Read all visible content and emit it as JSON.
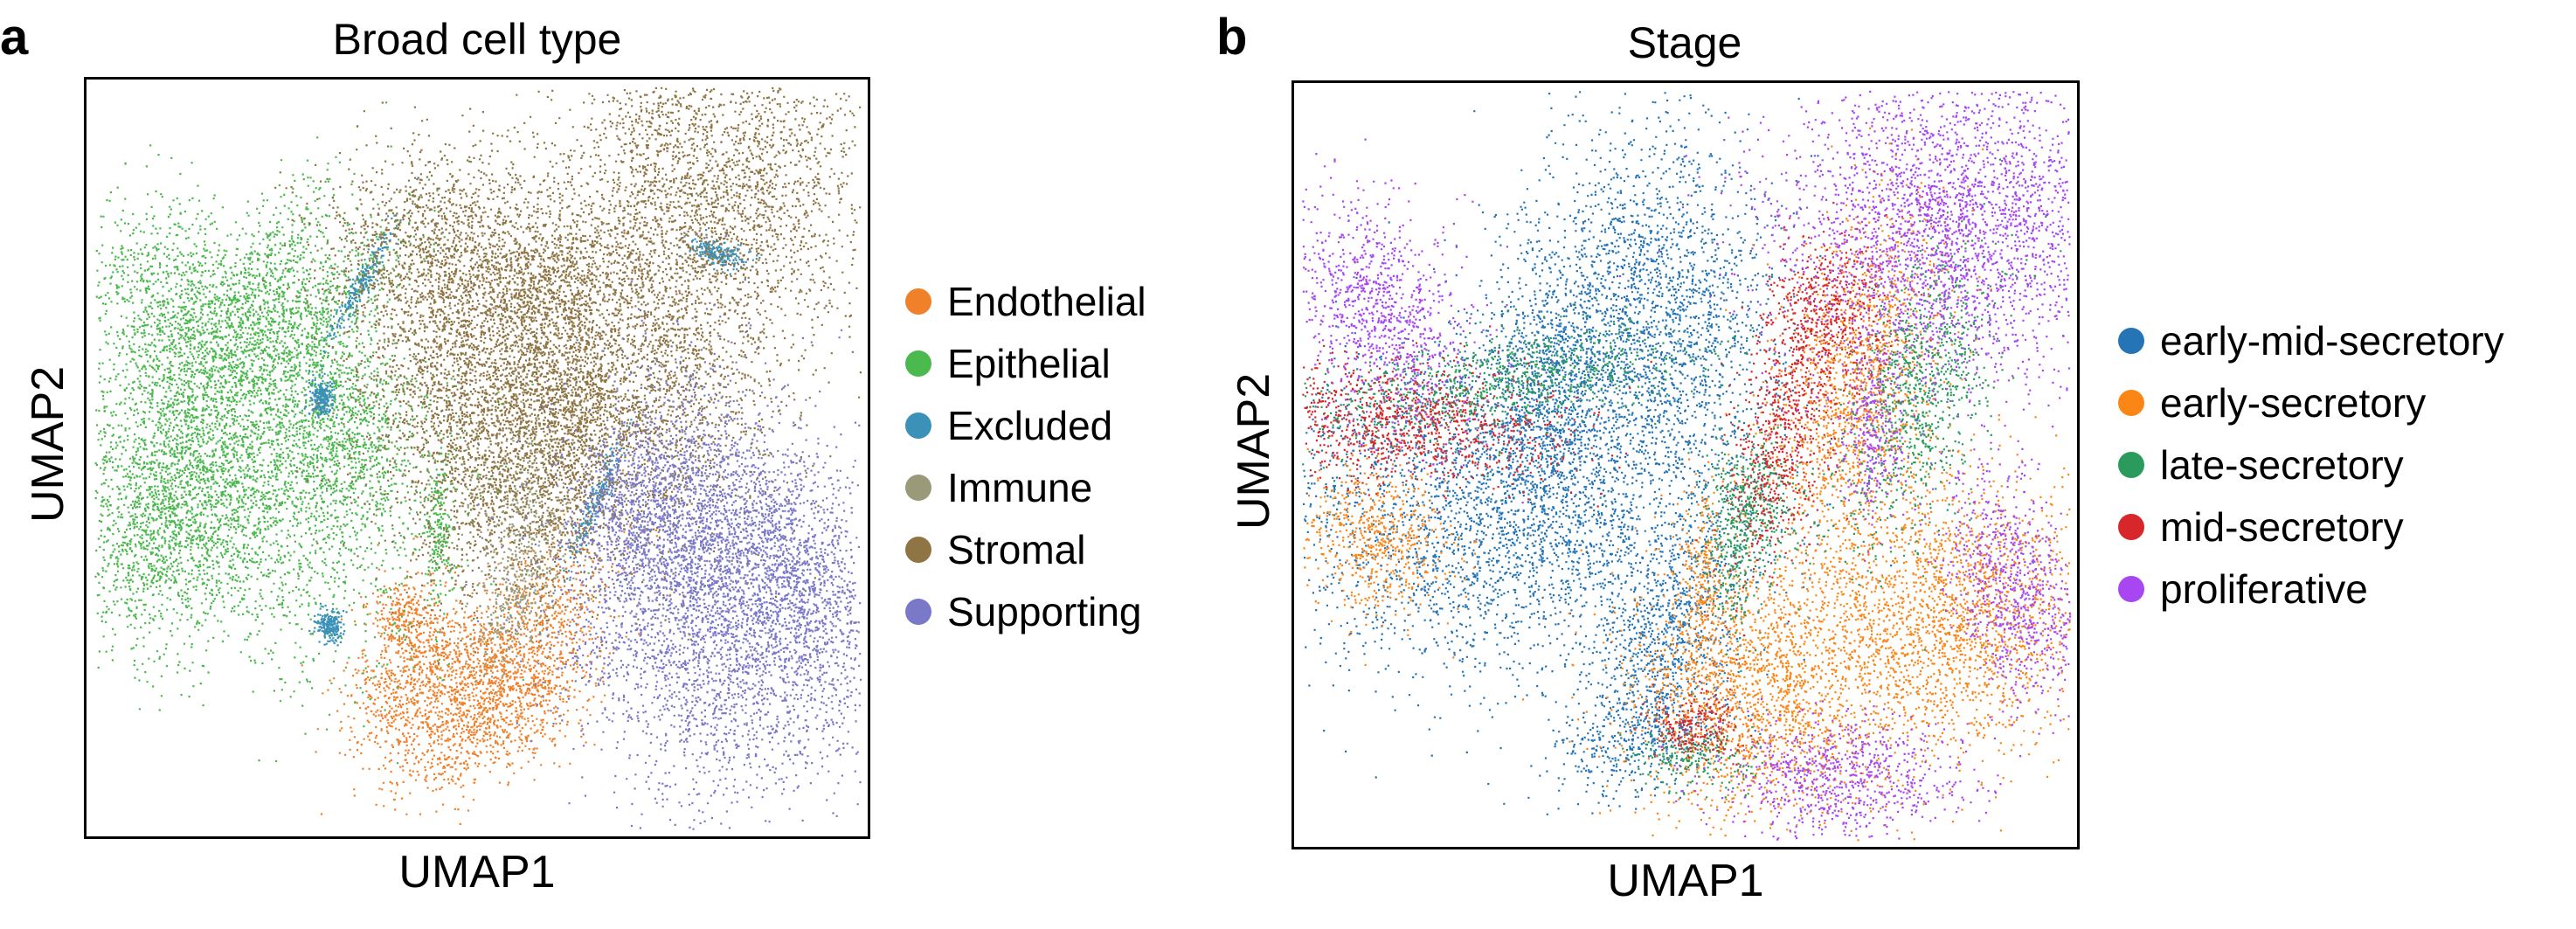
{
  "chart_data": [
    {
      "type": "scatter",
      "panel_label": "a",
      "title": "Broad cell type",
      "xlabel": "UMAP1",
      "ylabel": "UMAP2",
      "grid": false,
      "ticks": false,
      "legend_position": "right",
      "series": [
        {
          "name": "Endothelial",
          "color": "#f0802a",
          "clusters": [
            [
              47,
              76,
              6,
              4,
              0.5
            ],
            [
              52,
              84,
              8,
              4,
              -0.6
            ],
            [
              40,
              82,
              4,
              4,
              0
            ],
            [
              56,
              74,
              4,
              8,
              0.6
            ],
            [
              41,
              71,
              2,
              3,
              0
            ]
          ]
        },
        {
          "name": "Epithelial",
          "color": "#4bb94e",
          "clusters": [
            [
              20,
              53,
              13,
              11,
              0.1
            ],
            [
              10,
              58,
              5,
              8,
              0.3
            ],
            [
              12,
              31,
              6,
              8,
              -0.4
            ],
            [
              22,
              29,
              3,
              10,
              0.5
            ],
            [
              30,
              32,
              3,
              9,
              0.7
            ],
            [
              33,
              46,
              4,
              6,
              0
            ],
            [
              45,
              59,
              1,
              5,
              0
            ]
          ]
        },
        {
          "name": "Excluded",
          "color": "#3c91b8",
          "clusters": [
            [
              35,
              27,
              0.6,
              4,
              0.5
            ],
            [
              81,
              23,
              2,
              0.8,
              0.3
            ],
            [
              30,
              42,
              0.8,
              1.2,
              0
            ],
            [
              65,
              56,
              0.6,
              5,
              0.4
            ],
            [
              31,
              72,
              0.8,
              1,
              0
            ]
          ]
        },
        {
          "name": "Immune",
          "color": "#9a9a7a",
          "clusters": [
            [
              56,
              59,
              3,
              6,
              0
            ],
            [
              54,
              70,
              2,
              4,
              0.3
            ]
          ]
        },
        {
          "name": "Stromal",
          "color": "#8f7544",
          "clusters": [
            [
              80,
              14,
              10,
              10,
              -0.3
            ],
            [
              68,
              40,
              10,
              12,
              0.2
            ],
            [
              45,
              22,
              8,
              7,
              0
            ],
            [
              53,
              48,
              4,
              11,
              0.3
            ],
            [
              62,
              49,
              3,
              10,
              0.1
            ],
            [
              47,
              38,
              6,
              10,
              0.3
            ],
            [
              60,
              27,
              5,
              4,
              0
            ]
          ]
        },
        {
          "name": "Supporting",
          "color": "#7a78c8",
          "clusters": [
            [
              82,
              72,
              10,
              12,
              -0.2
            ],
            [
              90,
              65,
              5,
              9,
              -0.4
            ],
            [
              75,
              57,
              6,
              10,
              0.2
            ],
            [
              69,
              56,
              3,
              4,
              0
            ]
          ]
        }
      ]
    },
    {
      "type": "scatter",
      "panel_label": "b",
      "title": "Stage",
      "xlabel": "UMAP1",
      "ylabel": "UMAP2",
      "grid": false,
      "ticks": false,
      "legend_position": "right",
      "series": [
        {
          "name": "early-mid-secretory",
          "color": "#2575b6",
          "clusters": [
            [
              26,
              56,
              15,
              11,
              0
            ],
            [
              45,
              30,
              8,
              12,
              0
            ],
            [
              32,
              40,
              4,
              8,
              0
            ],
            [
              47,
              72,
              4,
              8,
              0.5
            ],
            [
              45,
              85,
              6,
              3,
              -0.4
            ]
          ]
        },
        {
          "name": "early-secretory",
          "color": "#fb8616",
          "clusters": [
            [
              10,
              60,
              5,
              5,
              -0.4
            ],
            [
              83,
              70,
              10,
              9,
              -0.3
            ],
            [
              58,
              80,
              8,
              9,
              -0.6
            ],
            [
              72,
              40,
              5,
              12,
              0.2
            ],
            [
              52,
              64,
              1.5,
              6,
              0
            ]
          ]
        },
        {
          "name": "late-secretory",
          "color": "#2a9b5c",
          "clusters": [
            [
              80,
              40,
              4,
              10,
              0.3
            ],
            [
              26,
              39,
              12,
              3,
              -0.2
            ],
            [
              59,
              55,
              3,
              5,
              0
            ],
            [
              51,
              88,
              4,
              2,
              0
            ],
            [
              56,
              60,
              1.5,
              6,
              0
            ]
          ]
        },
        {
          "name": "mid-secretory",
          "color": "#d7272a",
          "clusters": [
            [
              14,
              44,
              11,
              4,
              0.1
            ],
            [
              62,
              46,
              3,
              9,
              0.2
            ],
            [
              68,
              30,
              4,
              5,
              0
            ],
            [
              51,
              84,
              3,
              2,
              0
            ]
          ]
        },
        {
          "name": "proliferative",
          "color": "#a846f2",
          "clusters": [
            [
              84,
              18,
              11,
              11,
              -0.3
            ],
            [
              11,
              30,
              5,
              8,
              -0.4
            ],
            [
              92,
              66,
              4,
              8,
              -0.3
            ],
            [
              70,
              91,
              8,
              4,
              0
            ],
            [
              74,
              46,
              2,
              6,
              0
            ]
          ]
        }
      ]
    }
  ]
}
